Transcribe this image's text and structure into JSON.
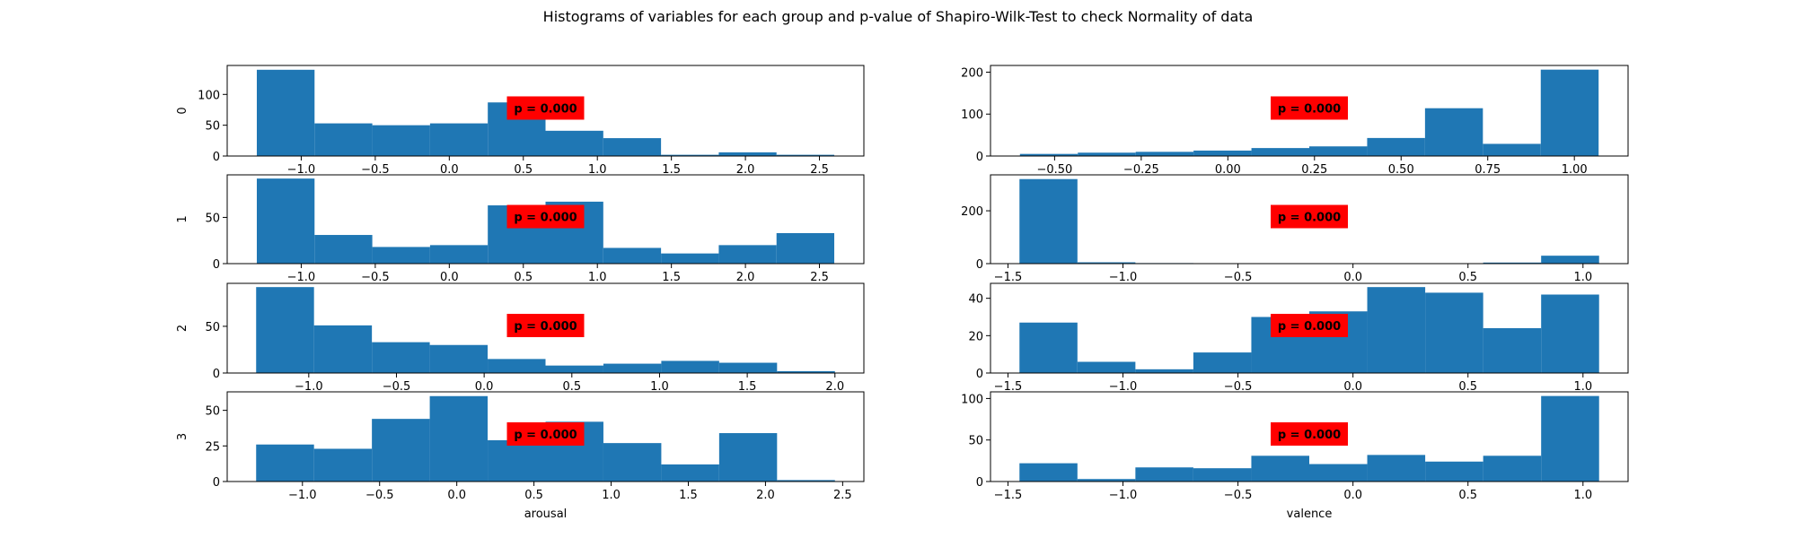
{
  "figure": {
    "title": "Histograms of variables for each group and p-value of Shapiro-Wilk-Test to check Normality of data"
  },
  "colors": {
    "bar": "#1f77b4",
    "pvalue_box": "#ff0000",
    "axes": "#000000",
    "background": "#ffffff"
  },
  "chart_data": [
    {
      "type": "bar",
      "variable": "arousal",
      "group": "0",
      "ylabel": "0",
      "xlabel": "",
      "bin_edges": [
        -1.3,
        -0.91,
        -0.52,
        -0.13,
        0.26,
        0.65,
        1.04,
        1.43,
        1.82,
        2.21,
        2.6
      ],
      "values": [
        140,
        53,
        50,
        53,
        87,
        41,
        29,
        2,
        6,
        2
      ],
      "xlim": [
        -1.5,
        2.8
      ],
      "ylim": [
        0,
        147
      ],
      "xticks": [
        -1.0,
        -0.5,
        0.0,
        0.5,
        1.0,
        1.5,
        2.0,
        2.5
      ],
      "xtick_labels": [
        "−1.0",
        "−0.5",
        "0.0",
        "0.5",
        "1.0",
        "1.5",
        "2.0",
        "2.5"
      ],
      "yticks": [
        0,
        50,
        100
      ],
      "ytick_labels": [
        "0",
        "50",
        "100"
      ],
      "p_value": "p = 0.000"
    },
    {
      "type": "bar",
      "variable": "valence",
      "group": "0",
      "ylabel": "",
      "xlabel": "",
      "bin_edges": [
        -0.6,
        -0.433,
        -0.266,
        -0.099,
        0.068,
        0.235,
        0.402,
        0.569,
        0.736,
        0.903,
        1.07
      ],
      "values": [
        5,
        8,
        10,
        13,
        19,
        23,
        43,
        114,
        29,
        206
      ],
      "xlim": [
        -0.685,
        1.155
      ],
      "ylim": [
        0,
        216
      ],
      "xticks": [
        -0.5,
        -0.25,
        0.0,
        0.25,
        0.5,
        0.75,
        1.0
      ],
      "xtick_labels": [
        "−0.50",
        "−0.25",
        "0.00",
        "0.25",
        "0.50",
        "0.75",
        "1.00"
      ],
      "yticks": [
        0,
        100,
        200
      ],
      "ytick_labels": [
        "0",
        "100",
        "200"
      ],
      "p_value": "p = 0.000"
    },
    {
      "type": "bar",
      "variable": "arousal",
      "group": "1",
      "ylabel": "1",
      "xlabel": "",
      "bin_edges": [
        -1.3,
        -0.91,
        -0.52,
        -0.13,
        0.26,
        0.65,
        1.04,
        1.43,
        1.82,
        2.21,
        2.6
      ],
      "values": [
        92,
        31,
        18,
        20,
        63,
        67,
        17,
        11,
        20,
        33
      ],
      "xlim": [
        -1.5,
        2.8
      ],
      "ylim": [
        0,
        96
      ],
      "xticks": [
        -1.0,
        -0.5,
        0.0,
        0.5,
        1.0,
        1.5,
        2.0,
        2.5
      ],
      "xtick_labels": [
        "−1.0",
        "−0.5",
        "0.0",
        "0.5",
        "1.0",
        "1.5",
        "2.0",
        "2.5"
      ],
      "yticks": [
        0,
        50
      ],
      "ytick_labels": [
        "0",
        "50"
      ],
      "p_value": "p = 0.000"
    },
    {
      "type": "bar",
      "variable": "valence",
      "group": "1",
      "ylabel": "",
      "xlabel": "",
      "bin_edges": [
        -1.45,
        -1.198,
        -0.946,
        -0.694,
        -0.442,
        -0.19,
        0.062,
        0.314,
        0.566,
        0.818,
        1.07
      ],
      "values": [
        320,
        5,
        2,
        0,
        1,
        0,
        0,
        0,
        4,
        30
      ],
      "xlim": [
        -1.576,
        1.196
      ],
      "ylim": [
        0,
        336
      ],
      "xticks": [
        -1.5,
        -1.0,
        -0.5,
        0.0,
        0.5,
        1.0
      ],
      "xtick_labels": [
        "−1.5",
        "−1.0",
        "−0.5",
        "0.0",
        "0.5",
        "1.0"
      ],
      "yticks": [
        0,
        200
      ],
      "ytick_labels": [
        "0",
        "200"
      ],
      "p_value": "p = 0.000"
    },
    {
      "type": "bar",
      "variable": "arousal",
      "group": "2",
      "ylabel": "2",
      "xlabel": "",
      "bin_edges": [
        -1.3,
        -0.97,
        -0.64,
        -0.31,
        0.02,
        0.35,
        0.68,
        1.01,
        1.34,
        1.67,
        2.0
      ],
      "values": [
        92,
        51,
        33,
        30,
        15,
        8,
        10,
        13,
        11,
        2
      ],
      "xlim": [
        -1.465,
        2.165
      ],
      "ylim": [
        0,
        96
      ],
      "xticks": [
        -1.0,
        -0.5,
        0.0,
        0.5,
        1.0,
        1.5,
        2.0
      ],
      "xtick_labels": [
        "−1.0",
        "−0.5",
        "0.0",
        "0.5",
        "1.0",
        "1.5",
        "2.0"
      ],
      "yticks": [
        0,
        50
      ],
      "ytick_labels": [
        "0",
        "50"
      ],
      "p_value": "p = 0.000"
    },
    {
      "type": "bar",
      "variable": "valence",
      "group": "2",
      "ylabel": "",
      "xlabel": "",
      "bin_edges": [
        -1.45,
        -1.198,
        -0.946,
        -0.694,
        -0.442,
        -0.19,
        0.062,
        0.314,
        0.566,
        0.818,
        1.07
      ],
      "values": [
        27,
        6,
        2,
        11,
        30,
        33,
        46,
        43,
        24,
        42
      ],
      "xlim": [
        -1.576,
        1.196
      ],
      "ylim": [
        0,
        48
      ],
      "xticks": [
        -1.5,
        -1.0,
        -0.5,
        0.0,
        0.5,
        1.0
      ],
      "xtick_labels": [
        "−1.5",
        "−1.0",
        "−0.5",
        "0.0",
        "0.5",
        "1.0"
      ],
      "yticks": [
        0,
        20,
        40
      ],
      "ytick_labels": [
        "0",
        "20",
        "40"
      ],
      "p_value": "p = 0.000"
    },
    {
      "type": "bar",
      "variable": "arousal",
      "group": "3",
      "ylabel": "3",
      "xlabel": "arousal",
      "bin_edges": [
        -1.3,
        -0.925,
        -0.55,
        -0.175,
        0.2,
        0.575,
        0.95,
        1.325,
        1.7,
        2.075,
        2.45
      ],
      "values": [
        26,
        23,
        44,
        60,
        29,
        42,
        27,
        12,
        34,
        1
      ],
      "xlim": [
        -1.4875,
        2.6375
      ],
      "ylim": [
        0,
        63
      ],
      "xticks": [
        -1.0,
        -0.5,
        0.0,
        0.5,
        1.0,
        1.5,
        2.0,
        2.5
      ],
      "xtick_labels": [
        "−1.0",
        "−0.5",
        "0.0",
        "0.5",
        "1.0",
        "1.5",
        "2.0",
        "2.5"
      ],
      "yticks": [
        0,
        25,
        50
      ],
      "ytick_labels": [
        "0",
        "25",
        "50"
      ],
      "p_value": "p = 0.000"
    },
    {
      "type": "bar",
      "variable": "valence",
      "group": "3",
      "ylabel": "",
      "xlabel": "valence",
      "bin_edges": [
        -1.45,
        -1.198,
        -0.946,
        -0.694,
        -0.442,
        -0.19,
        0.062,
        0.314,
        0.566,
        0.818,
        1.07
      ],
      "values": [
        22,
        3,
        17,
        16,
        31,
        21,
        32,
        24,
        31,
        103
      ],
      "xlim": [
        -1.576,
        1.196
      ],
      "ylim": [
        0,
        108
      ],
      "xticks": [
        -1.5,
        -1.0,
        -0.5,
        0.0,
        0.5,
        1.0
      ],
      "xtick_labels": [
        "−1.5",
        "−1.0",
        "−0.5",
        "0.0",
        "0.5",
        "1.0"
      ],
      "yticks": [
        0,
        50,
        100
      ],
      "ytick_labels": [
        "0",
        "50",
        "100"
      ],
      "p_value": "p = 0.000"
    }
  ]
}
